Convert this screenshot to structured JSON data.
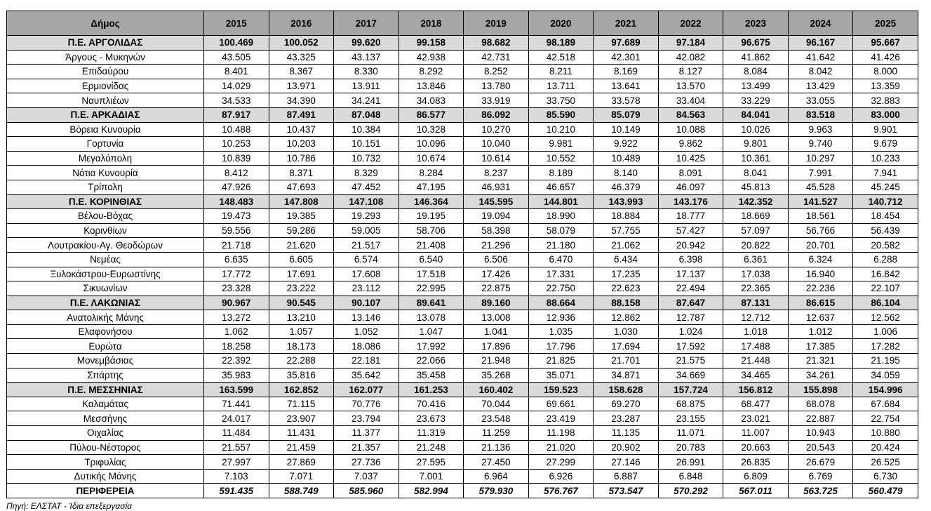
{
  "table": {
    "headers": [
      "Δήμος",
      "2015",
      "2016",
      "2017",
      "2018",
      "2019",
      "2020",
      "2021",
      "2022",
      "2023",
      "2024",
      "2025"
    ],
    "rows": [
      {
        "type": "group",
        "name": "Π.Ε. ΑΡΓΟΛΙΔΑΣ",
        "values": [
          "100.469",
          "100.052",
          "99.620",
          "99.158",
          "98.682",
          "98.189",
          "97.689",
          "97.184",
          "96.675",
          "96.167",
          "95.667"
        ]
      },
      {
        "type": "item",
        "name": "Άργους - Μυκηνών",
        "values": [
          "43.505",
          "43.325",
          "43.137",
          "42.938",
          "42.731",
          "42.518",
          "42.301",
          "42.082",
          "41.862",
          "41.642",
          "41.426"
        ]
      },
      {
        "type": "item",
        "name": "Επιδαύρου",
        "values": [
          "8.401",
          "8.367",
          "8.330",
          "8.292",
          "8.252",
          "8.211",
          "8.169",
          "8.127",
          "8.084",
          "8.042",
          "8.000"
        ]
      },
      {
        "type": "item",
        "name": "Ερμιονίδας",
        "values": [
          "14.029",
          "13.971",
          "13.911",
          "13.846",
          "13.780",
          "13.711",
          "13.641",
          "13.570",
          "13.499",
          "13.429",
          "13.359"
        ]
      },
      {
        "type": "item",
        "name": "Ναυπλιέων",
        "values": [
          "34.533",
          "34.390",
          "34.241",
          "34.083",
          "33.919",
          "33.750",
          "33.578",
          "33.404",
          "33.229",
          "33.055",
          "32.883"
        ]
      },
      {
        "type": "group",
        "name": "Π.Ε. ΑΡΚΑΔΙΑΣ",
        "values": [
          "87.917",
          "87.491",
          "87.048",
          "86.577",
          "86.092",
          "85.590",
          "85.079",
          "84.563",
          "84.041",
          "83.518",
          "83.000"
        ]
      },
      {
        "type": "item",
        "name": "Βόρεια Κυνουρία",
        "values": [
          "10.488",
          "10.437",
          "10.384",
          "10.328",
          "10.270",
          "10.210",
          "10.149",
          "10.088",
          "10.026",
          "9.963",
          "9.901"
        ]
      },
      {
        "type": "item",
        "name": "Γορτυνία",
        "values": [
          "10.253",
          "10.203",
          "10.151",
          "10.096",
          "10.040",
          "9.981",
          "9.922",
          "9.862",
          "9.801",
          "9.740",
          "9.679"
        ]
      },
      {
        "type": "item",
        "name": "Μεγαλόπολη",
        "values": [
          "10.839",
          "10.786",
          "10.732",
          "10.674",
          "10.614",
          "10.552",
          "10.489",
          "10.425",
          "10.361",
          "10.297",
          "10.233"
        ]
      },
      {
        "type": "item",
        "name": "Νότια Κυνουρία",
        "values": [
          "8.412",
          "8.371",
          "8.329",
          "8.284",
          "8.237",
          "8.189",
          "8.140",
          "8.091",
          "8.041",
          "7.991",
          "7.941"
        ]
      },
      {
        "type": "item",
        "name": "Τρίπολη",
        "values": [
          "47.926",
          "47.693",
          "47.452",
          "47.195",
          "46.931",
          "46.657",
          "46.379",
          "46.097",
          "45.813",
          "45.528",
          "45.245"
        ]
      },
      {
        "type": "group",
        "name": "Π.Ε. ΚΟΡΙΝΘΙΑΣ",
        "values": [
          "148.483",
          "147.808",
          "147.108",
          "146.364",
          "145.595",
          "144.801",
          "143.993",
          "143.176",
          "142.352",
          "141.527",
          "140.712"
        ]
      },
      {
        "type": "item",
        "name": "Βέλου-Βόχας",
        "values": [
          "19.473",
          "19.385",
          "19.293",
          "19.195",
          "19.094",
          "18.990",
          "18.884",
          "18.777",
          "18.669",
          "18.561",
          "18.454"
        ]
      },
      {
        "type": "item",
        "name": "Κορινθίων",
        "values": [
          "59.556",
          "59.286",
          "59.005",
          "58.706",
          "58.398",
          "58.079",
          "57.755",
          "57.427",
          "57.097",
          "56.766",
          "56.439"
        ]
      },
      {
        "type": "item",
        "name": "Λουτρακίου-Αγ. Θεοδώρων",
        "values": [
          "21.718",
          "21.620",
          "21.517",
          "21.408",
          "21.296",
          "21.180",
          "21.062",
          "20.942",
          "20.822",
          "20.701",
          "20.582"
        ]
      },
      {
        "type": "item",
        "name": "Νεμέας",
        "values": [
          "6.635",
          "6.605",
          "6.574",
          "6.540",
          "6.506",
          "6.470",
          "6.434",
          "6.398",
          "6.361",
          "6.324",
          "6.288"
        ]
      },
      {
        "type": "item",
        "name": "Ξυλοκάστρου-Ευρωστίνης",
        "values": [
          "17.772",
          "17.691",
          "17.608",
          "17.518",
          "17.426",
          "17.331",
          "17.235",
          "17.137",
          "17.038",
          "16.940",
          "16.842"
        ]
      },
      {
        "type": "item",
        "name": "Σικυωνίων",
        "values": [
          "23.328",
          "23.222",
          "23.112",
          "22.995",
          "22.875",
          "22.750",
          "22.623",
          "22.494",
          "22.365",
          "22.236",
          "22.107"
        ]
      },
      {
        "type": "group",
        "name": "Π.Ε. ΛΑΚΩΝΙΑΣ",
        "values": [
          "90.967",
          "90.545",
          "90.107",
          "89.641",
          "89.160",
          "88.664",
          "88.158",
          "87.647",
          "87.131",
          "86.615",
          "86.104"
        ]
      },
      {
        "type": "item",
        "name": "Ανατολικής Μάνης",
        "values": [
          "13.272",
          "13.210",
          "13.146",
          "13.078",
          "13.008",
          "12.936",
          "12.862",
          "12.787",
          "12.712",
          "12.637",
          "12.562"
        ]
      },
      {
        "type": "item",
        "name": "Ελαφονήσου",
        "values": [
          "1.062",
          "1.057",
          "1.052",
          "1.047",
          "1.041",
          "1.035",
          "1.030",
          "1.024",
          "1.018",
          "1.012",
          "1.006"
        ]
      },
      {
        "type": "item",
        "name": "Ευρώτα",
        "values": [
          "18.258",
          "18.173",
          "18.086",
          "17.992",
          "17.896",
          "17.796",
          "17.694",
          "17.592",
          "17.488",
          "17.385",
          "17.282"
        ]
      },
      {
        "type": "item",
        "name": "Μονεμβάσιας",
        "values": [
          "22.392",
          "22.288",
          "22.181",
          "22.066",
          "21.948",
          "21.825",
          "21.701",
          "21.575",
          "21.448",
          "21.321",
          "21.195"
        ]
      },
      {
        "type": "item",
        "name": "Σπάρτης",
        "values": [
          "35.983",
          "35.816",
          "35.642",
          "35.458",
          "35.268",
          "35.071",
          "34.871",
          "34.669",
          "34.465",
          "34.261",
          "34.059"
        ]
      },
      {
        "type": "group",
        "name": "Π.Ε. ΜΕΣΣΗΝΙΑΣ",
        "values": [
          "163.599",
          "162.852",
          "162.077",
          "161.253",
          "160.402",
          "159.523",
          "158.628",
          "157.724",
          "156.812",
          "155.898",
          "154.996"
        ]
      },
      {
        "type": "item",
        "name": "Καλαμάτας",
        "values": [
          "71.441",
          "71.115",
          "70.776",
          "70.416",
          "70.044",
          "69.661",
          "69.270",
          "68.875",
          "68.477",
          "68.078",
          "67.684"
        ]
      },
      {
        "type": "item",
        "name": "Μεσσήνης",
        "values": [
          "24.017",
          "23.907",
          "23.794",
          "23.673",
          "23.548",
          "23.419",
          "23.287",
          "23.155",
          "23.021",
          "22.887",
          "22.754"
        ]
      },
      {
        "type": "item",
        "name": "Οιχαλίας",
        "values": [
          "11.484",
          "11.431",
          "11.377",
          "11.319",
          "11.259",
          "11.198",
          "11.135",
          "11.071",
          "11.007",
          "10.943",
          "10.880"
        ]
      },
      {
        "type": "item",
        "name": "Πύλου-Νέστορος",
        "values": [
          "21.557",
          "21.459",
          "21.357",
          "21.248",
          "21.136",
          "21.020",
          "20.902",
          "20.783",
          "20.663",
          "20.543",
          "20.424"
        ]
      },
      {
        "type": "item",
        "name": "Τριφυλίας",
        "values": [
          "27.997",
          "27.869",
          "27.736",
          "27.595",
          "27.450",
          "27.299",
          "27.146",
          "26.991",
          "26.835",
          "26.679",
          "26.525"
        ]
      },
      {
        "type": "item",
        "name": "Δυτικής Μάνης",
        "values": [
          "7.103",
          "7.071",
          "7.037",
          "7.001",
          "6.964",
          "6.926",
          "6.887",
          "6.848",
          "6.809",
          "6.769",
          "6.730"
        ]
      },
      {
        "type": "total",
        "name": "ΠΕΡΙΦΕΡΕΙΑ",
        "values": [
          "591.435",
          "588.749",
          "585.960",
          "582.994",
          "579.930",
          "576.767",
          "573.547",
          "570.292",
          "567.011",
          "563.725",
          "560.479"
        ]
      }
    ]
  },
  "footer": {
    "source_text": "Πηγή: ΕΛΣΤΑΤ - Ίδια επεξεργασία"
  }
}
